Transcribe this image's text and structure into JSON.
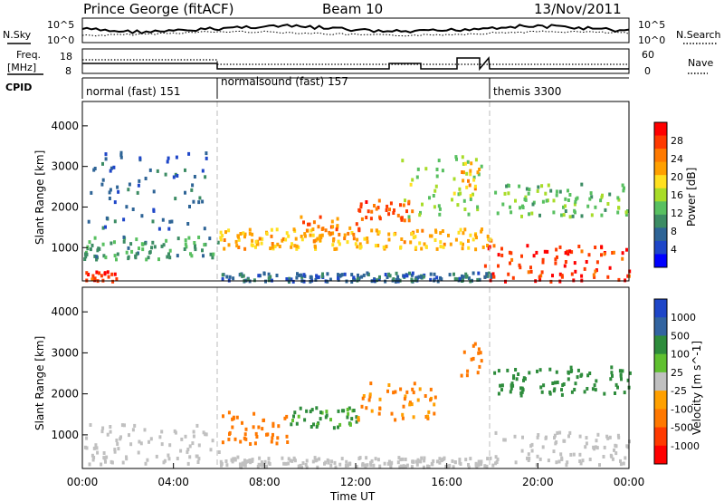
{
  "header": {
    "title": "Prince George (fitACF)",
    "beam": "Beam 10",
    "date": "13/Nov/2011"
  },
  "noise_panel": {
    "left_label": "N.Sky",
    "right_label": "N.Search",
    "left_ticks": [
      "10^5",
      "10^0"
    ],
    "right_ticks": [
      "10^5",
      "10^0"
    ]
  },
  "freq_panel": {
    "left_label_1": "Freq.",
    "left_label_2": "[MHz]",
    "right_label": "Nave",
    "left_ticks": [
      "18",
      "8"
    ],
    "right_ticks": [
      "60",
      "0"
    ]
  },
  "cpid": {
    "label": "CPID",
    "segments": [
      {
        "name": "normal (fast) 151",
        "start": 0,
        "end": 6
      },
      {
        "name": "normalsound (fast) 157",
        "start": 6,
        "end": 18
      },
      {
        "name": "themis 3300",
        "start": 18,
        "end": 24
      }
    ]
  },
  "chart_data": [
    {
      "type": "heatmap",
      "name": "power",
      "ylabel": "Slant Range [km]",
      "yticks": [
        "1000",
        "2000",
        "3000",
        "4000"
      ],
      "ylim": [
        180,
        4600
      ],
      "xlim": [
        0,
        24
      ],
      "colorbar": {
        "label": "Power [dB]",
        "ticks": [
          "28",
          "24",
          "20",
          "16",
          "12",
          "8",
          "4"
        ],
        "colors": [
          "#ff0000",
          "#ff3a00",
          "#ff7a00",
          "#ffa000",
          "#ffe020",
          "#a8dc28",
          "#58c060",
          "#3c8c64",
          "#2e6496",
          "#1e46c8",
          "#0000ff"
        ]
      },
      "regions": [
        {
          "t0": 0.0,
          "t1": 1.5,
          "r0": 200,
          "r1": 450,
          "level": 28
        },
        {
          "t0": 0.0,
          "t1": 6.0,
          "r0": 750,
          "r1": 1300,
          "level": 10
        },
        {
          "t0": 0.2,
          "t1": 5.5,
          "r0": 1500,
          "r1": 3400,
          "level": 6
        },
        {
          "t0": 6.0,
          "t1": 18.0,
          "r0": 1000,
          "r1": 1500,
          "level": 20
        },
        {
          "t0": 9.5,
          "t1": 12.2,
          "r0": 1200,
          "r1": 1800,
          "level": 24
        },
        {
          "t0": 12.0,
          "t1": 14.5,
          "r0": 1700,
          "r1": 2200,
          "level": 26
        },
        {
          "t0": 14.0,
          "t1": 17.5,
          "r0": 1800,
          "r1": 3300,
          "level": 14
        },
        {
          "t0": 16.5,
          "t1": 17.5,
          "r0": 2400,
          "r1": 3400,
          "level": 22
        },
        {
          "t0": 17.6,
          "t1": 24.0,
          "r0": 200,
          "r1": 1100,
          "level": 28
        },
        {
          "t0": 18.0,
          "t1": 24.0,
          "r0": 1800,
          "r1": 2600,
          "level": 12
        },
        {
          "t0": 6.0,
          "t1": 18.0,
          "r0": 200,
          "r1": 420,
          "level": 6
        }
      ]
    },
    {
      "type": "heatmap",
      "name": "velocity",
      "ylabel": "Slant Range [km]",
      "yticks": [
        "1000",
        "2000",
        "3000",
        "4000"
      ],
      "ylim": [
        180,
        4600
      ],
      "xlim": [
        0,
        24
      ],
      "xticks": [
        "00:00",
        "04:00",
        "08:00",
        "12:00",
        "16:00",
        "20:00",
        "00:00"
      ],
      "xlabel": "Time UT",
      "colorbar": {
        "label": "Velocity [m s^-1]",
        "ticks": [
          "1000",
          "500",
          "100",
          "25",
          "-25",
          "-100",
          "-500",
          "-1000"
        ],
        "colors": [
          "#1e46c8",
          "#3264a0",
          "#2e8c3c",
          "#60c030",
          "#c0c0c0",
          "#ffa000",
          "#ff7800",
          "#ff3a00",
          "#ff0000"
        ]
      },
      "regions": [
        {
          "t0": 0.0,
          "t1": 6.0,
          "r0": 300,
          "r1": 1300,
          "level": 0
        },
        {
          "t0": 6.0,
          "t1": 9.0,
          "r0": 800,
          "r1": 1600,
          "level": -300
        },
        {
          "t0": 9.0,
          "t1": 12.0,
          "r0": 1200,
          "r1": 1700,
          "level": 150
        },
        {
          "t0": 12.0,
          "t1": 15.5,
          "r0": 1400,
          "r1": 2300,
          "level": -120
        },
        {
          "t0": 16.5,
          "t1": 17.5,
          "r0": 2400,
          "r1": 3300,
          "level": -300
        },
        {
          "t0": 18.0,
          "t1": 24.0,
          "r0": 300,
          "r1": 1100,
          "level": 0
        },
        {
          "t0": 6.0,
          "t1": 18.0,
          "r0": 250,
          "r1": 500,
          "level": 0
        },
        {
          "t0": 18.0,
          "t1": 24.0,
          "r0": 2000,
          "r1": 2700,
          "level": 200
        }
      ]
    }
  ]
}
